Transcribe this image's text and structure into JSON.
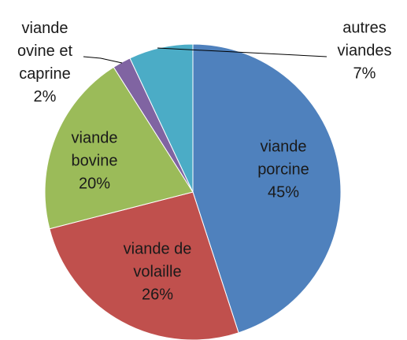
{
  "chart_data": {
    "type": "pie",
    "categories": [
      "viande porcine",
      "viande de volaille",
      "viande bovine",
      "viande ovine et caprine",
      "autres viandes"
    ],
    "values": [
      45,
      26,
      20,
      2,
      7
    ],
    "value_labels": [
      "45%",
      "26%",
      "20%",
      "2%",
      "7%"
    ],
    "colors": [
      "#4f81bd",
      "#c0504d",
      "#9bbb59",
      "#8064a2",
      "#4bacc6"
    ]
  }
}
